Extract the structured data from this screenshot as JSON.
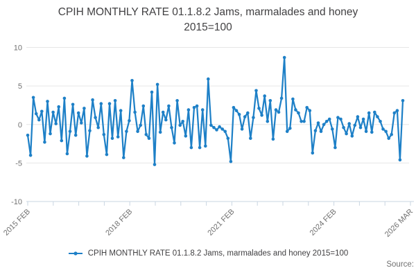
{
  "title": "CPIH MONTHLY RATE 01.1.8.2 Jams, marmalades and honey 2015=100",
  "legend": {
    "label": "CPIH MONTHLY RATE 01.1.8.2 Jams, marmalades and honey 2015=100"
  },
  "source_label": "Source:",
  "colors": {
    "line": "#1e80c7",
    "grid": "#e6e6e6",
    "axis": "#c9d6e2",
    "text_dark": "#414042",
    "text_muted": "#707070"
  },
  "chart_data": {
    "type": "line",
    "title": "CPIH MONTHLY RATE 01.1.8.2 Jams, marmalades and honey 2015=100",
    "series_name": "CPIH MONTHLY RATE 01.1.8.2 Jams, marmalades and honey 2015=100",
    "frequency": "monthly",
    "x_start": "2015 FEB",
    "x_end": "2026 MAR",
    "ylim": [
      -10,
      10
    ],
    "yticks": [
      10,
      5,
      0,
      -5,
      -10
    ],
    "grid": true,
    "legend_position": "bottom",
    "x_tick_labels": [
      "2015 FEB",
      "2018 FEB",
      "2021 FEB",
      "2024 FEB",
      "2026 MAR"
    ],
    "x_tick_label_positions": [
      0,
      4,
      8,
      12,
      15
    ],
    "x_minor_tick_count": 16,
    "values": [
      -1.4,
      -4.0,
      3.5,
      1.4,
      0.6,
      1.7,
      -2.3,
      3.0,
      -1.2,
      1.6,
      0.1,
      2.3,
      -2.1,
      3.4,
      -3.8,
      -0.9,
      2.6,
      -1.4,
      1.5,
      0.2,
      2.1,
      -4.1,
      -0.8,
      3.2,
      0.9,
      -0.4,
      2.7,
      -1.3,
      -3.9,
      2.7,
      -1.8,
      3.1,
      -1.6,
      1.8,
      -4.3,
      -0.9,
      0.5,
      5.7,
      1.6,
      -0.9,
      -0.1,
      2.4,
      -1.3,
      -1.8,
      4.2,
      -5.2,
      5.2,
      -1.0,
      1.6,
      0.6,
      2.4,
      -0.4,
      -2.4,
      3.1,
      -0.1,
      0.4,
      -1.5,
      1.9,
      -3.0,
      2.2,
      2.4,
      -3.0,
      1.9,
      -2.8,
      5.9,
      -0.1,
      -0.4,
      -0.7,
      -0.3,
      -0.6,
      -0.9,
      -1.8,
      -4.8,
      2.2,
      1.8,
      1.3,
      -0.6,
      1.0,
      1.5,
      -1.8,
      0.9,
      4.4,
      2.1,
      1.2,
      3.7,
      0.4,
      3.1,
      -1.9,
      1.9,
      1.6,
      3.4,
      8.7,
      -0.9,
      -0.5,
      3.3,
      1.9,
      1.5,
      0.4,
      0.4,
      2.2,
      1.8,
      -3.7,
      -0.8,
      0.2,
      -0.9,
      0.0,
      0.4,
      0.7,
      -0.6,
      -3.0,
      0.9,
      0.7,
      -0.4,
      -1.2,
      0.1,
      -1.5,
      -0.1,
      1.0,
      -0.4,
      0.7,
      -0.9,
      1.5,
      -1.0,
      1.6,
      1.0,
      0.4,
      -0.6,
      -0.9,
      -1.8,
      -1.3,
      1.5,
      1.8,
      -4.6,
      3.1
    ]
  }
}
